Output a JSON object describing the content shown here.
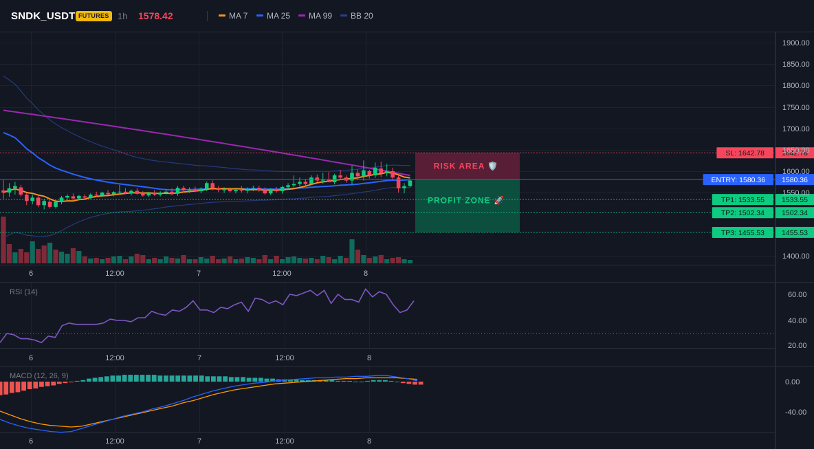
{
  "header": {
    "symbol": "SNDK_USDT",
    "badge": "FUTURES",
    "interval": "1h",
    "price": "1578.42",
    "legend": [
      {
        "label": "MA 7",
        "color": "#f7931a"
      },
      {
        "label": "MA 25",
        "color": "#2962ff"
      },
      {
        "label": "MA 99",
        "color": "#9c27b0"
      },
      {
        "label": "BB 20",
        "color": "#2a3f8f"
      }
    ]
  },
  "colors": {
    "up": "#0ecb81",
    "down": "#f6465d",
    "volume_up": "#0f6b5c",
    "volume_down": "#7f2a39",
    "rsi": "#7e57c2",
    "macd": "#2962ff",
    "signal": "#ff9800",
    "hist_up": "#26a69a",
    "hist_down": "#ef5350"
  },
  "chart_data": [
    {
      "type": "candlestick",
      "x_labels": [
        "6",
        "12:00",
        "7",
        "12:00",
        "8"
      ],
      "y_ticks": [
        "1900.00",
        "1850.00",
        "1800.00",
        "1750.00",
        "1700.00",
        "1650.00",
        "1600.00",
        "1550.00",
        "1400.00"
      ],
      "ylim": [
        1390,
        1915
      ],
      "candles_ohlc": [
        [
          1555,
          1580,
          1535,
          1550
        ],
        [
          1550,
          1572,
          1540,
          1560
        ],
        [
          1560,
          1575,
          1545,
          1565
        ],
        [
          1562,
          1568,
          1540,
          1545
        ],
        [
          1545,
          1550,
          1520,
          1530
        ],
        [
          1530,
          1545,
          1522,
          1538
        ],
        [
          1538,
          1542,
          1515,
          1520
        ],
        [
          1520,
          1535,
          1510,
          1530
        ],
        [
          1528,
          1534,
          1512,
          1516
        ],
        [
          1516,
          1532,
          1512,
          1528
        ],
        [
          1527,
          1542,
          1522,
          1538
        ],
        [
          1538,
          1546,
          1530,
          1542
        ],
        [
          1541,
          1548,
          1533,
          1536
        ],
        [
          1536,
          1545,
          1532,
          1542
        ],
        [
          1541,
          1546,
          1535,
          1538
        ],
        [
          1538,
          1548,
          1534,
          1545
        ],
        [
          1545,
          1552,
          1540,
          1543
        ],
        [
          1543,
          1552,
          1539,
          1550
        ],
        [
          1549,
          1556,
          1544,
          1546
        ],
        [
          1546,
          1553,
          1541,
          1551
        ],
        [
          1551,
          1568,
          1546,
          1552
        ],
        [
          1552,
          1560,
          1546,
          1548
        ],
        [
          1548,
          1557,
          1543,
          1554
        ],
        [
          1554,
          1560,
          1545,
          1547
        ],
        [
          1547,
          1553,
          1540,
          1543
        ],
        [
          1543,
          1552,
          1539,
          1549
        ],
        [
          1548,
          1556,
          1542,
          1545
        ],
        [
          1545,
          1553,
          1541,
          1550
        ],
        [
          1550,
          1558,
          1545,
          1552
        ],
        [
          1552,
          1560,
          1544,
          1547
        ],
        [
          1547,
          1565,
          1542,
          1561
        ],
        [
          1561,
          1566,
          1550,
          1555
        ],
        [
          1555,
          1562,
          1549,
          1557
        ],
        [
          1557,
          1564,
          1551,
          1553
        ],
        [
          1553,
          1562,
          1548,
          1559
        ],
        [
          1559,
          1576,
          1553,
          1572
        ],
        [
          1572,
          1578,
          1555,
          1560
        ],
        [
          1560,
          1565,
          1551,
          1556
        ],
        [
          1556,
          1562,
          1549,
          1557
        ],
        [
          1557,
          1562,
          1550,
          1553
        ],
        [
          1553,
          1560,
          1548,
          1556
        ],
        [
          1556,
          1565,
          1550,
          1554
        ],
        [
          1554,
          1562,
          1548,
          1559
        ],
        [
          1559,
          1566,
          1553,
          1561
        ],
        [
          1561,
          1566,
          1552,
          1556
        ],
        [
          1556,
          1562,
          1545,
          1548
        ],
        [
          1548,
          1560,
          1544,
          1556
        ],
        [
          1556,
          1563,
          1550,
          1553
        ],
        [
          1553,
          1566,
          1547,
          1563
        ],
        [
          1563,
          1572,
          1557,
          1567
        ],
        [
          1567,
          1590,
          1562,
          1570
        ],
        [
          1570,
          1585,
          1564,
          1575
        ],
        [
          1575,
          1582,
          1566,
          1570
        ],
        [
          1570,
          1590,
          1568,
          1585
        ],
        [
          1585,
          1592,
          1575,
          1578
        ],
        [
          1578,
          1596,
          1570,
          1580
        ],
        [
          1580,
          1598,
          1574,
          1574
        ],
        [
          1574,
          1594,
          1569,
          1590
        ],
        [
          1590,
          1603,
          1582,
          1585
        ],
        [
          1585,
          1590,
          1573,
          1578
        ],
        [
          1578,
          1612,
          1568,
          1596
        ],
        [
          1596,
          1604,
          1580,
          1588
        ],
        [
          1588,
          1625,
          1578,
          1602
        ],
        [
          1600,
          1603,
          1583,
          1590
        ],
        [
          1590,
          1620,
          1584,
          1608
        ],
        [
          1606,
          1622,
          1586,
          1595
        ],
        [
          1595,
          1617,
          1588,
          1600
        ],
        [
          1600,
          1608,
          1580,
          1585
        ],
        [
          1585,
          1592,
          1550,
          1560
        ],
        [
          1560,
          1572,
          1548,
          1565
        ],
        [
          1565,
          1580,
          1562,
          1578
        ]
      ],
      "volume": [
        68,
        28,
        16,
        21,
        16,
        32,
        21,
        26,
        30,
        20,
        17,
        14,
        22,
        18,
        10,
        7,
        8,
        6,
        8,
        10,
        11,
        6,
        10,
        14,
        12,
        6,
        8,
        6,
        10,
        8,
        7,
        12,
        6,
        6,
        9,
        7,
        11,
        6,
        7,
        10,
        6,
        7,
        9,
        8,
        6,
        12,
        6,
        11,
        6,
        9,
        10,
        8,
        7,
        8,
        6,
        11,
        9,
        6,
        11,
        8,
        35,
        20,
        12,
        8,
        10,
        12,
        6,
        8,
        9,
        6,
        5
      ],
      "volume_up": [
        false,
        false,
        true,
        false,
        false,
        true,
        false,
        false,
        true,
        false,
        true,
        true,
        false,
        true,
        false,
        true,
        false,
        true,
        false,
        true,
        true,
        false,
        true,
        false,
        false,
        true,
        false,
        true,
        true,
        false,
        true,
        false,
        true,
        false,
        true,
        true,
        false,
        false,
        true,
        false,
        true,
        false,
        true,
        true,
        false,
        false,
        true,
        false,
        true,
        true,
        true,
        true,
        false,
        true,
        false,
        true,
        false,
        true,
        true,
        false,
        true,
        false,
        true,
        false,
        true,
        false,
        true,
        false,
        false,
        true,
        true
      ],
      "levels": [
        {
          "label": "SL: 1642.78",
          "price": "1642.78",
          "value": 1642.78,
          "color": "#f6465d"
        },
        {
          "label": "ENTRY: 1580.36",
          "price": "1580.36",
          "value": 1580.36,
          "color": "#2962ff"
        },
        {
          "label": "TP1: 1533.55",
          "price": "1533.55",
          "value": 1533.55,
          "color": "#0ecb81"
        },
        {
          "label": "TP2: 1502.34",
          "price": "1502.34",
          "value": 1502.34,
          "color": "#0ecb81"
        },
        {
          "label": "TP3: 1455.53",
          "price": "1455.53",
          "value": 1455.53,
          "color": "#0ecb81"
        }
      ],
      "risk_label": "RISK AREA 🛡️",
      "profit_label": "PROFIT ZONE 🚀"
    },
    {
      "type": "line",
      "title": "RSI (14)",
      "x_labels": [
        "6",
        "12:00",
        "7",
        "12:00",
        "8"
      ],
      "y_ticks": [
        "60.00",
        "40.00",
        "20.00"
      ],
      "ylim": [
        18,
        67
      ],
      "values": [
        23,
        30,
        29,
        26,
        26,
        25,
        23,
        28,
        27,
        36,
        38,
        37,
        37,
        37,
        37,
        38,
        41,
        40,
        40,
        39,
        42,
        42,
        47,
        45,
        44,
        48,
        47,
        50,
        55,
        48,
        48,
        46,
        50,
        49,
        52,
        54,
        47,
        57,
        56,
        53,
        55,
        52,
        60,
        59,
        61,
        63,
        59,
        63,
        53,
        60,
        56,
        56,
        54,
        64,
        58,
        62,
        60,
        52,
        46,
        48,
        55
      ]
    },
    {
      "type": "bar",
      "title": "MACD (12, 26, 9)",
      "x_labels": [
        "6",
        "12:00",
        "7",
        "12:00",
        "8"
      ],
      "y_ticks": [
        "0.00",
        "-40.00"
      ],
      "ylim": [
        -63,
        13
      ],
      "histogram": [
        -18,
        -17,
        -15,
        -14,
        -12,
        -10,
        -9,
        -7,
        -6,
        -5,
        -3,
        -2,
        -1,
        1,
        2,
        4,
        5,
        6,
        7,
        8,
        8,
        9,
        9,
        9,
        9,
        9,
        9,
        8,
        8,
        8,
        8,
        8,
        8,
        8,
        8,
        7,
        7,
        7,
        7,
        6,
        6,
        6,
        5,
        5,
        5,
        4,
        4,
        3,
        3,
        3,
        3,
        2,
        2,
        2,
        2,
        2,
        2,
        1,
        1,
        1,
        0,
        0,
        1,
        2,
        2,
        2,
        1,
        0,
        -2,
        -3,
        -4,
        -4
      ],
      "macd": [
        -50,
        -55,
        -59,
        -62,
        -64,
        -66,
        -67,
        -66,
        -62,
        -58,
        -54,
        -50,
        -46,
        -43,
        -40,
        -36,
        -33,
        -29,
        -25,
        -20,
        -16,
        -12,
        -9,
        -6,
        -4,
        -2,
        -1,
        1,
        2,
        3,
        4,
        5,
        5,
        6,
        6,
        7,
        7,
        8,
        8,
        6,
        4,
        1
      ],
      "signal": [
        -39,
        -44,
        -49,
        -53,
        -56,
        -58,
        -59,
        -60,
        -59,
        -56,
        -53,
        -50,
        -47,
        -44,
        -41,
        -38,
        -35,
        -32,
        -28,
        -25,
        -21,
        -17,
        -14,
        -11,
        -9,
        -7,
        -5,
        -3,
        -2,
        -1,
        0,
        1,
        2,
        3,
        4,
        4,
        5,
        5,
        5,
        5,
        4,
        3
      ]
    }
  ]
}
